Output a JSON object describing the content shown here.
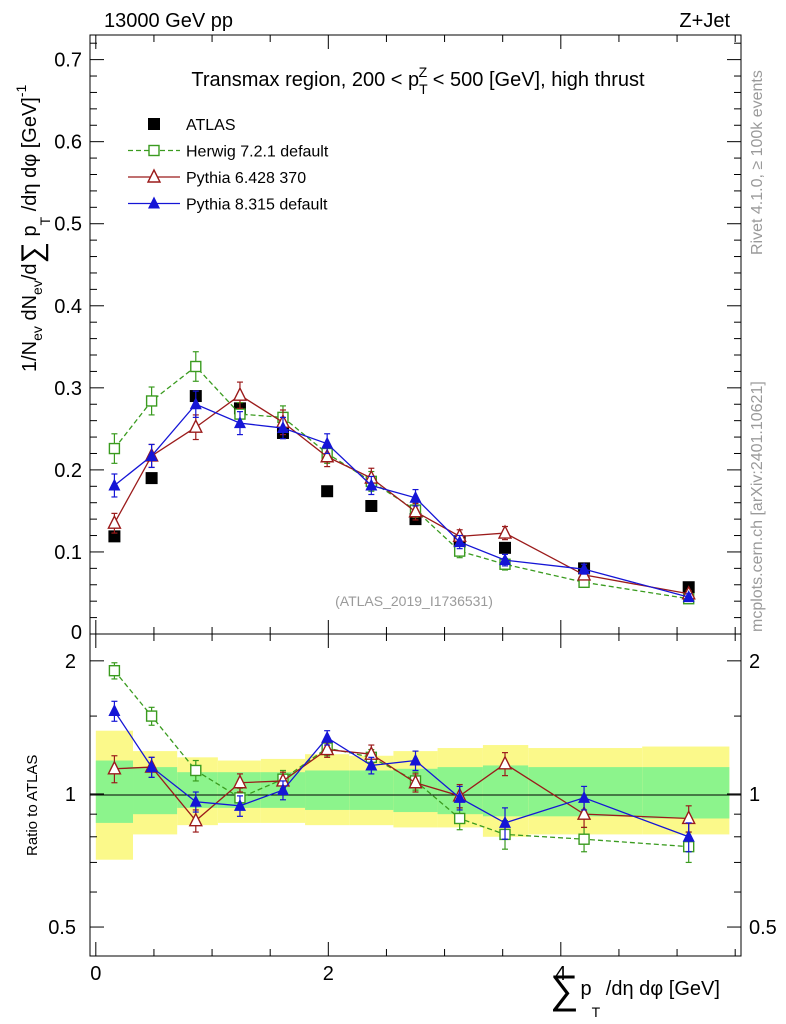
{
  "header": {
    "left_label": "13000 GeV pp",
    "right_label": "Z+Jet"
  },
  "side_labels": {
    "rivet": "Rivet 4.1.0, ≥ 100k events",
    "mcplots": "mcplots.cern.ch [arXiv:2401.10621]"
  },
  "chart_data": {
    "type": "scatter",
    "title": "Transmax region, 200 < p_T^Z < 500 [GeV], high thrust",
    "title_parts": {
      "pre": "Transmax region, 200 < p",
      "sub": "T",
      "sup": "Z",
      "post": " < 500 [GeV], high thrust"
    },
    "reference_label": "(ATLAS_2019_I1736531)",
    "ylabel": "1/N_ev dN_ev/d∑p_T/dη dφ [GeV]^-1",
    "ylabel_parts": {
      "a": "1/N",
      "a_sub": "ev",
      "b": " dN",
      "b_sub": "ev",
      "c": "/d",
      "sum": "∑",
      "d": " p",
      "d_sub": "T",
      "e": " /dη dφ  [GeV]",
      "e_sup": "-1"
    },
    "xlabel": "∑p_T/dη dφ [GeV]",
    "xlabel_parts": {
      "sum": "∑",
      "p": "p",
      "p_sub": "T",
      "rest": " /dη dφ [GeV]"
    },
    "xlim": [
      -0.05,
      5.55
    ],
    "ylim": [
      0,
      0.73
    ],
    "yticks": [
      0.1,
      0.2,
      0.3,
      0.4,
      0.5,
      0.6,
      0.7
    ],
    "ytick_labels": [
      "0.1",
      "0.2",
      "0.3",
      "0.4",
      "0.5",
      "0.6",
      "0.7"
    ],
    "y_zero_label": "0",
    "xticks": [
      0,
      2,
      4
    ],
    "xtick_labels": [
      "0",
      "2",
      "4"
    ],
    "x": [
      0.16,
      0.48,
      0.86,
      1.24,
      1.61,
      1.99,
      2.37,
      2.75,
      3.13,
      3.52,
      4.2,
      5.1
    ],
    "series": [
      {
        "name": "ATLAS",
        "marker": "square-filled",
        "color": "#000000",
        "values": [
          0.119,
          0.19,
          0.29,
          0.275,
          0.245,
          0.174,
          0.156,
          0.14,
          0.113,
          0.105,
          0.08,
          0.057
        ],
        "errors": [
          0,
          0,
          0,
          0,
          0,
          0,
          0,
          0,
          0,
          0,
          0,
          0
        ]
      },
      {
        "name": "Herwig 7.2.1 default",
        "marker": "square-open",
        "dashed": true,
        "color": "#3a9b1f",
        "values": [
          0.226,
          0.284,
          0.326,
          0.268,
          0.264,
          0.22,
          0.186,
          0.151,
          0.101,
          0.085,
          0.063,
          0.043
        ],
        "errors": [
          0.018,
          0.017,
          0.018,
          0.014,
          0.014,
          0.012,
          0.012,
          0.009,
          0.008,
          0.007,
          0.005,
          0.004
        ]
      },
      {
        "name": "Pythia 6.428 370",
        "marker": "triangle-open",
        "dashed": false,
        "color": "#9b1b1b",
        "values": [
          0.135,
          0.217,
          0.252,
          0.291,
          0.258,
          0.216,
          0.19,
          0.149,
          0.119,
          0.123,
          0.072,
          0.049
        ],
        "errors": [
          0.012,
          0.014,
          0.015,
          0.016,
          0.015,
          0.012,
          0.012,
          0.01,
          0.008,
          0.008,
          0.006,
          0.004
        ]
      },
      {
        "name": "Pythia 8.315 default",
        "marker": "triangle-filled",
        "dashed": false,
        "color": "#1515d6",
        "values": [
          0.181,
          0.217,
          0.28,
          0.257,
          0.251,
          0.232,
          0.181,
          0.166,
          0.112,
          0.09,
          0.079,
          0.045
        ],
        "errors": [
          0.014,
          0.014,
          0.016,
          0.014,
          0.013,
          0.012,
          0.011,
          0.01,
          0.008,
          0.007,
          0.006,
          0.004
        ]
      }
    ],
    "ratio": {
      "ylabel": "Ratio to ATLAS",
      "ylim": [
        0.43,
        2.3
      ],
      "log": true,
      "yticks": [
        0.5,
        1,
        2
      ],
      "ytick_labels": [
        "0.5",
        "1",
        "2"
      ],
      "series": [
        {
          "name": "Herwig 7.2.1 default",
          "values": [
            1.9,
            1.5,
            1.13,
            0.98,
            1.08,
            1.27,
            1.21,
            1.07,
            0.88,
            0.81,
            0.79,
            0.76
          ],
          "errors": [
            0.08,
            0.07,
            0.06,
            0.05,
            0.05,
            0.05,
            0.05,
            0.05,
            0.05,
            0.06,
            0.05,
            0.06
          ]
        },
        {
          "name": "Pythia 6.428 370",
          "values": [
            1.14,
            1.15,
            0.87,
            1.06,
            1.07,
            1.26,
            1.23,
            1.06,
            0.99,
            1.17,
            0.9,
            0.88
          ],
          "errors": [
            0.08,
            0.06,
            0.05,
            0.05,
            0.05,
            0.05,
            0.06,
            0.05,
            0.06,
            0.07,
            0.06,
            0.06
          ]
        },
        {
          "name": "Pythia 8.315 default",
          "values": [
            1.54,
            1.15,
            0.96,
            0.94,
            1.02,
            1.34,
            1.16,
            1.19,
            0.98,
            0.86,
            0.98,
            0.8
          ],
          "errors": [
            0.08,
            0.06,
            0.05,
            0.05,
            0.05,
            0.05,
            0.05,
            0.06,
            0.06,
            0.07,
            0.06,
            0.06
          ]
        }
      ],
      "bands": {
        "edges": [
          0,
          0.32,
          0.7,
          1.05,
          1.42,
          1.8,
          2.18,
          2.56,
          2.94,
          3.33,
          3.72,
          4.7,
          5.45
        ],
        "yellow": [
          [
            0.71,
            1.39
          ],
          [
            0.81,
            1.25
          ],
          [
            0.85,
            1.21
          ],
          [
            0.86,
            1.19
          ],
          [
            0.86,
            1.2
          ],
          [
            0.85,
            1.23
          ],
          [
            0.85,
            1.22
          ],
          [
            0.84,
            1.25
          ],
          [
            0.84,
            1.27
          ],
          [
            0.8,
            1.29
          ],
          [
            0.81,
            1.27
          ],
          [
            0.81,
            1.28
          ]
        ],
        "green": [
          [
            0.86,
            1.19
          ],
          [
            0.9,
            1.15
          ],
          [
            0.93,
            1.12
          ],
          [
            0.93,
            1.12
          ],
          [
            0.93,
            1.12
          ],
          [
            0.92,
            1.13
          ],
          [
            0.92,
            1.13
          ],
          [
            0.91,
            1.14
          ],
          [
            0.9,
            1.15
          ],
          [
            0.89,
            1.16
          ],
          [
            0.89,
            1.15
          ],
          [
            0.88,
            1.15
          ]
        ]
      }
    }
  }
}
